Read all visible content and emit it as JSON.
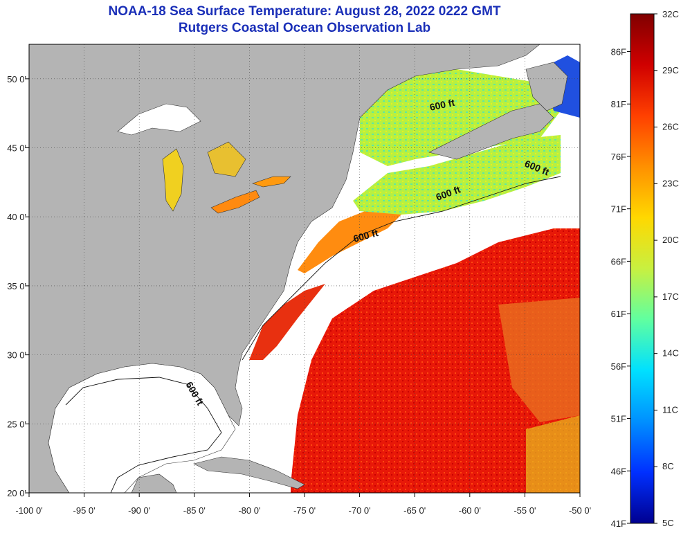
{
  "title_line1": "NOAA-18 Sea Surface Temperature:  August 28, 2022 0222 GMT",
  "title_line2": "Rutgers Coastal Ocean Observation Lab",
  "map": {
    "lon_ticks": [
      "-100 0'",
      "-95 0'",
      "-90 0'",
      "-85 0'",
      "-80 0'",
      "-75 0'",
      "-70 0'",
      "-65 0'",
      "-60 0'",
      "-55 0'",
      "-50 0'"
    ],
    "lat_ticks": [
      "50 0'",
      "45 0'",
      "40 0'",
      "35 0'",
      "30 0'",
      "25 0'",
      "20 0'"
    ],
    "lon_range": [
      -100,
      -50
    ],
    "lat_range": [
      20,
      52.5
    ],
    "contour_labels": [
      "600 ft",
      "600 ft",
      "600 ft",
      "600 ft",
      "600 ft"
    ],
    "land_color": "#b4b4b4",
    "cloud_color": "#ffffff",
    "grid": true
  },
  "colorbar": {
    "celsius_labels": [
      "32C",
      "29C",
      "26C",
      "23C",
      "20C",
      "17C",
      "14C",
      "11C",
      "8C",
      "5C"
    ],
    "fahrenheit_labels": [
      "86F",
      "81F",
      "76F",
      "71F",
      "66F",
      "61F",
      "56F",
      "51F",
      "46F",
      "41F"
    ],
    "colors": [
      "#800000",
      "#d00000",
      "#ff4000",
      "#ff9000",
      "#ffd800",
      "#c8f040",
      "#60ffa0",
      "#00e0ff",
      "#0090ff",
      "#0030ff",
      "#000090"
    ]
  }
}
